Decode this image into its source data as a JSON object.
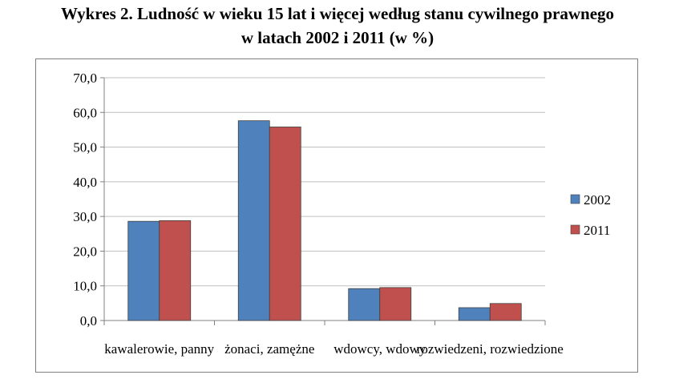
{
  "title": {
    "line1": "Wykres 2. Ludność w wieku 15 lat i więcej według stanu cywilnego prawnego",
    "line2": "w latach 2002 i 2011 (w %)"
  },
  "chart_data": {
    "type": "bar",
    "categories": [
      "kawalerowie, panny",
      "żonaci, zamężne",
      "wdowcy, wdowy",
      "rozwiedzeni, rozwiedzione"
    ],
    "series": [
      {
        "name": "2002",
        "color": "#4f81bd",
        "values": [
          28.6,
          57.6,
          9.2,
          3.7
        ]
      },
      {
        "name": "2011",
        "color": "#c0504d",
        "values": [
          28.8,
          55.8,
          9.5,
          4.9
        ]
      }
    ],
    "ylim": [
      0,
      70
    ],
    "yticks": [
      "0,0",
      "10,0",
      "20,0",
      "30,0",
      "40,0",
      "50,0",
      "60,0",
      "70,0"
    ],
    "grid": true,
    "legend": "right"
  }
}
